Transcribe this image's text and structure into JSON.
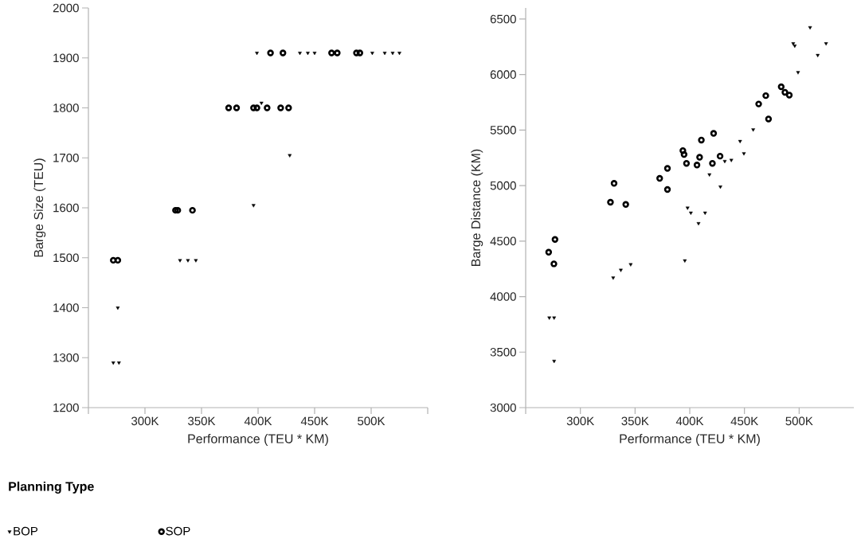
{
  "chart_data": [
    {
      "type": "scatter",
      "xlabel": "Performance (TEU * KM)",
      "ylabel": "Barge Size (TEU)",
      "legend_title": "Planning Type",
      "legend": "bottom",
      "grid": false,
      "xlim": [
        250000,
        550000
      ],
      "ylim": [
        1200,
        2000
      ],
      "xticks": [
        {
          "value": 250000,
          "label": null
        },
        {
          "value": 300000,
          "label": "300K"
        },
        {
          "value": 350000,
          "label": "350K"
        },
        {
          "value": 400000,
          "label": "400K"
        },
        {
          "value": 450000,
          "label": "450K"
        },
        {
          "value": 500000,
          "label": "500K"
        },
        {
          "value": 550000,
          "label": null
        }
      ],
      "yticks": [
        1200,
        1300,
        1400,
        1500,
        1600,
        1700,
        1800,
        1900,
        2000
      ],
      "series": [
        {
          "name": "BOP",
          "color": "#000000",
          "marker": "triangle",
          "x": [
            272000,
            277000,
            276000,
            331000,
            338000,
            345000,
            396000,
            428000,
            403000,
            399000,
            437000,
            444000,
            450000,
            501000,
            512000,
            519000,
            525000
          ],
          "values": [
            1290,
            1290,
            1400,
            1495,
            1495,
            1495,
            1605,
            1705,
            1810,
            1910,
            1910,
            1910,
            1910,
            1910,
            1910,
            1910,
            1910
          ]
        },
        {
          "name": "SOP",
          "color": "#000000",
          "marker": "circle",
          "x": [
            272000,
            276000,
            327000,
            329000,
            342000,
            374000,
            381000,
            396000,
            399000,
            408000,
            420000,
            427000,
            411000,
            422000,
            465000,
            470000,
            487000,
            490000
          ],
          "values": [
            1495,
            1495,
            1595,
            1595,
            1595,
            1800,
            1800,
            1800,
            1800,
            1800,
            1800,
            1800,
            1910,
            1910,
            1910,
            1910,
            1910,
            1910
          ]
        }
      ]
    },
    {
      "type": "scatter",
      "xlabel": "Performance (TEU * KM)",
      "ylabel": "Barge Distance (KM)",
      "grid": false,
      "xlim": [
        250000,
        550000
      ],
      "ylim": [
        3000,
        6600
      ],
      "xticks": [
        {
          "value": 250000,
          "label": null
        },
        {
          "value": 300000,
          "label": "300K"
        },
        {
          "value": 350000,
          "label": "350K"
        },
        {
          "value": 400000,
          "label": "400K"
        },
        {
          "value": 450000,
          "label": "450K"
        },
        {
          "value": 500000,
          "label": "500K"
        }
      ],
      "yticks": [
        3000,
        3500,
        4000,
        4500,
        5000,
        5500,
        6000,
        6500
      ],
      "series": [
        {
          "color": "#000000",
          "marker": "triangle",
          "x": [
            271600,
            276000,
            276000,
            330000,
            337000,
            346000,
            395500,
            398000,
            401000,
            408000,
            414000,
            418000,
            428000,
            432000,
            438000,
            446000,
            449500,
            458000,
            494600,
            496000,
            499000,
            510000,
            517000,
            524600
          ],
          "values": [
            3810,
            3810,
            3420,
            4170,
            4240,
            4290,
            4325,
            4800,
            4755,
            4660,
            4755,
            5100,
            4990,
            5220,
            5230,
            5400,
            5290,
            5505,
            6280,
            6260,
            6020,
            6425,
            6175,
            6280
          ]
        },
        {
          "color": "#000000",
          "marker": "circle",
          "x": [
            271000,
            276800,
            275800,
            330800,
            327500,
            341500,
            372500,
            379600,
            379600,
            393700,
            394800,
            397000,
            409000,
            406600,
            410600,
            421800,
            420700,
            427700,
            463000,
            469500,
            472000,
            483600,
            487000,
            491000
          ],
          "values": [
            4400,
            4515,
            4295,
            5020,
            4850,
            4830,
            5065,
            5155,
            4965,
            5315,
            5280,
            5200,
            5255,
            5185,
            5410,
            5470,
            5200,
            5265,
            5735,
            5810,
            5600,
            5890,
            5840,
            5815
          ]
        }
      ]
    }
  ]
}
